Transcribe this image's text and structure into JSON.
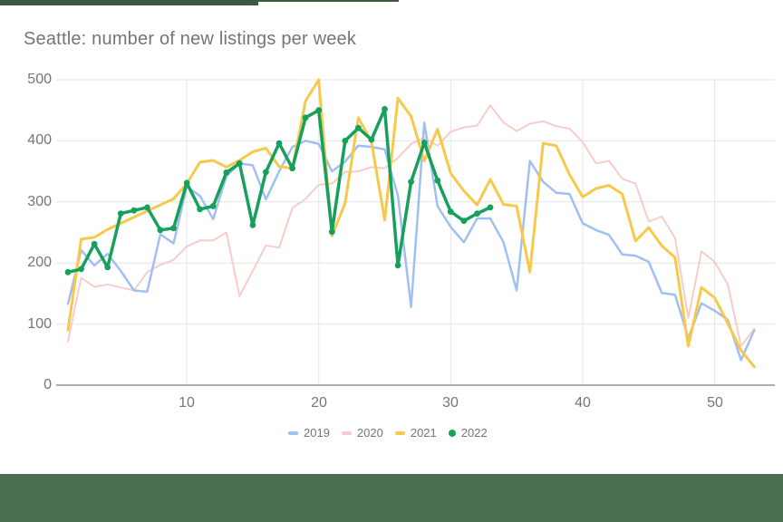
{
  "window": {
    "top_bar_color": "#3C5A40",
    "bottom_bar_color": "#4B7051"
  },
  "chart": {
    "title": "Seattle: number of new listings per week",
    "title_color": "#757575",
    "tick_label_color": "#757575",
    "gridline_color": "#E4E4E4",
    "baseline_color": "#ACACAC",
    "y_ticks": [
      500,
      400,
      300,
      200,
      100,
      0
    ],
    "x_ticks": [
      10,
      20,
      30,
      40,
      50
    ]
  },
  "chart_data": {
    "type": "line",
    "title": "Seattle: number of new listings per week",
    "xlabel": "",
    "ylabel": "",
    "xlim": [
      1,
      53
    ],
    "ylim": [
      0,
      500
    ],
    "grid": true,
    "legend_position": "bottom",
    "x": [
      1,
      2,
      3,
      4,
      5,
      6,
      7,
      8,
      9,
      10,
      11,
      12,
      13,
      14,
      15,
      16,
      17,
      18,
      19,
      20,
      21,
      22,
      23,
      24,
      25,
      26,
      27,
      28,
      29,
      30,
      31,
      32,
      33,
      34,
      35,
      36,
      37,
      38,
      39,
      40,
      41,
      42,
      43,
      44,
      45,
      46,
      47,
      48,
      49,
      50,
      51,
      52,
      53
    ],
    "series": [
      {
        "name": "2019",
        "color": "#A0C0F4",
        "marker": false,
        "values": [
          133,
          221,
          196,
          215,
          187,
          155,
          153,
          247,
          232,
          325,
          310,
          272,
          342,
          363,
          360,
          304,
          350,
          390,
          400,
          395,
          350,
          366,
          392,
          390,
          386,
          310,
          128,
          430,
          293,
          259,
          234,
          273,
          273,
          234,
          155,
          367,
          333,
          315,
          313,
          265,
          254,
          246,
          214,
          212,
          202,
          151,
          148,
          77,
          134,
          122,
          107,
          41,
          90
        ]
      },
      {
        "name": "2020",
        "color": "#F6CDC9",
        "marker": false,
        "values": [
          72,
          176,
          161,
          165,
          160,
          155,
          185,
          197,
          205,
          227,
          237,
          237,
          250,
          146,
          187,
          229,
          225,
          290,
          305,
          328,
          330,
          349,
          350,
          357,
          355,
          372,
          395,
          405,
          392,
          415,
          422,
          425,
          458,
          430,
          416,
          428,
          432,
          424,
          420,
          398,
          363,
          367,
          338,
          330,
          268,
          276,
          241,
          110,
          219,
          202,
          165,
          64,
          92
        ]
      },
      {
        "name": "2021",
        "color": "#F6C94B",
        "marker": false,
        "values": [
          90,
          239,
          242,
          255,
          265,
          275,
          285,
          295,
          305,
          330,
          365,
          368,
          357,
          368,
          382,
          388,
          358,
          355,
          465,
          500,
          244,
          298,
          438,
          398,
          270,
          470,
          440,
          367,
          419,
          347,
          318,
          295,
          337,
          296,
          293,
          185,
          396,
          392,
          345,
          308,
          322,
          327,
          313,
          236,
          258,
          228,
          209,
          64,
          160,
          143,
          101,
          57,
          30
        ]
      },
      {
        "name": "2022",
        "color": "#17A05B",
        "marker": true,
        "values": [
          185,
          190,
          231,
          193,
          281,
          286,
          291,
          254,
          257,
          331,
          288,
          293,
          348,
          363,
          262,
          349,
          396,
          355,
          438,
          450,
          251,
          400,
          421,
          402,
          452,
          196,
          333,
          397,
          335,
          284,
          269,
          281,
          291
        ]
      }
    ]
  }
}
